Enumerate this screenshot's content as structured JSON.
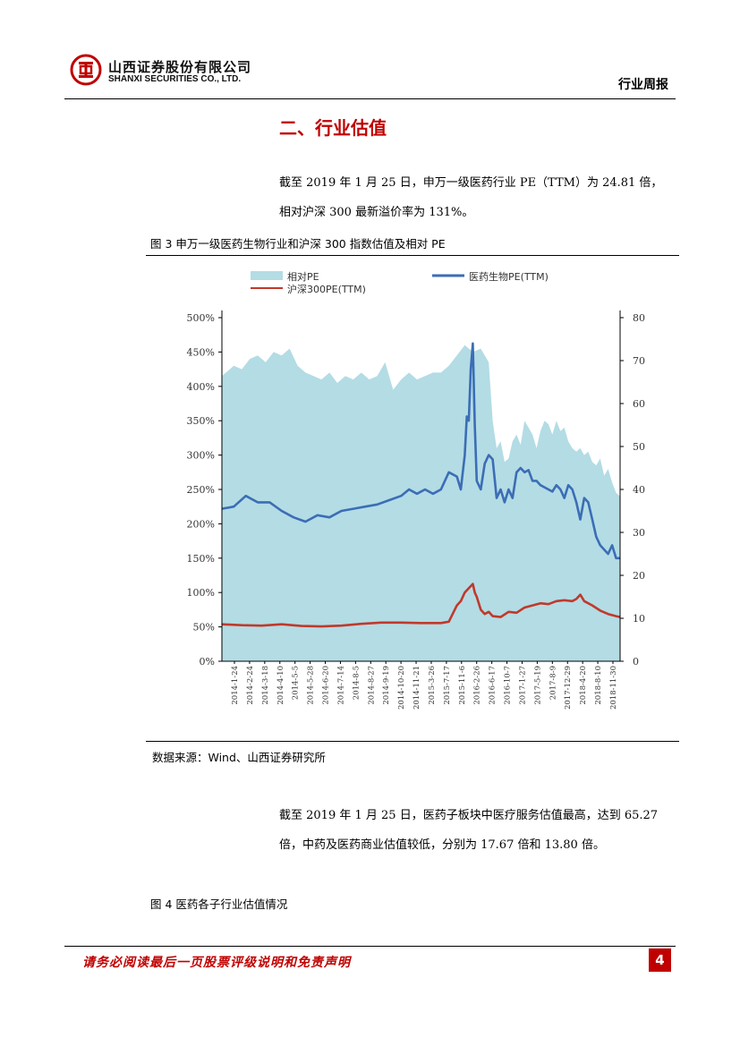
{
  "header": {
    "company_cn": "山西证券股份有限公司",
    "company_en": "SHANXI SECURITIES CO., LTD.",
    "report_type": "行业周报"
  },
  "section": {
    "title": "二、行业估值"
  },
  "paragraphs": {
    "p1": [
      "截至 2019 年 1 月 25 日，申万一级医药行业 PE（TTM）为 24.81 倍，",
      "相对沪深 300 最新溢价率为 131%。"
    ],
    "p2": [
      "截至 2019 年 1 月 25 日，医药子板块中医疗服务估值最高，达到 65.27",
      "倍，中药及医药商业估值较低，分别为 17.67 倍和 13.80 倍。"
    ]
  },
  "figure3": {
    "caption": "图 3 申万一级医药生物行业和沪深 300 指数估值及相对 PE",
    "source": "数据来源：Wind、山西证券研究所"
  },
  "figure4": {
    "caption": "图 4 医药各子行业估值情况"
  },
  "footer": {
    "disclaimer": "请务必阅读最后一页股票评级说明和免责声明",
    "page_number": "4"
  },
  "colors": {
    "accent": "#c00000",
    "area": "#b3dce5",
    "pharma_line": "#3c6db5",
    "hs300_line": "#c0392b"
  },
  "chart_data": {
    "type": "area",
    "legend": [
      "相对PE",
      "医药生物PE(TTM)",
      "沪深300PE(TTM)"
    ],
    "legend_position": "top",
    "x_tick_labels": [
      "2014-1-24",
      "2014-2-24",
      "2014-3-18",
      "2014-4-10",
      "2014-5-5",
      "2014-5-28",
      "2014-6-20",
      "2014-7-14",
      "2014-8-5",
      "2014-8-27",
      "2014-9-19",
      "2014-10-20",
      "2014-11-21",
      "2015-3-26",
      "2015-7-17",
      "2015-11-6",
      "2016-2-26",
      "2016-6-17",
      "2016-10-7",
      "2017-1-27",
      "2017-5-19",
      "2017-8-9",
      "2017-12-29",
      "2018-4-20",
      "2018-8-10",
      "2018-11-30"
    ],
    "y_left": {
      "ticks": [
        "0%",
        "50%",
        "100%",
        "150%",
        "200%",
        "250%",
        "300%",
        "350%",
        "400%",
        "450%",
        "500%"
      ],
      "range": [
        0,
        5
      ]
    },
    "y_right": {
      "ticks": [
        "0",
        "10",
        "20",
        "30",
        "40",
        "50",
        "60",
        "70",
        "80"
      ],
      "range": [
        0,
        80
      ]
    },
    "grid": false,
    "series": [
      {
        "name": "相对PE",
        "axis": "left",
        "kind": "area",
        "points": [
          [
            0,
            4.15
          ],
          [
            0.01,
            4.2
          ],
          [
            0.03,
            4.3
          ],
          [
            0.05,
            4.25
          ],
          [
            0.07,
            4.4
          ],
          [
            0.09,
            4.45
          ],
          [
            0.11,
            4.35
          ],
          [
            0.13,
            4.5
          ],
          [
            0.15,
            4.45
          ],
          [
            0.17,
            4.55
          ],
          [
            0.19,
            4.3
          ],
          [
            0.21,
            4.2
          ],
          [
            0.23,
            4.15
          ],
          [
            0.25,
            4.1
          ],
          [
            0.27,
            4.2
          ],
          [
            0.29,
            4.05
          ],
          [
            0.31,
            4.15
          ],
          [
            0.33,
            4.1
          ],
          [
            0.35,
            4.2
          ],
          [
            0.37,
            4.1
          ],
          [
            0.39,
            4.15
          ],
          [
            0.41,
            4.35
          ],
          [
            0.43,
            3.95
          ],
          [
            0.45,
            4.1
          ],
          [
            0.47,
            4.2
          ],
          [
            0.49,
            4.1
          ],
          [
            0.51,
            4.15
          ],
          [
            0.53,
            4.2
          ],
          [
            0.55,
            4.2
          ],
          [
            0.57,
            4.3
          ],
          [
            0.59,
            4.45
          ],
          [
            0.61,
            4.6
          ],
          [
            0.63,
            4.5
          ],
          [
            0.65,
            4.55
          ],
          [
            0.67,
            4.35
          ],
          [
            0.68,
            3.5
          ],
          [
            0.69,
            3.1
          ],
          [
            0.7,
            3.2
          ],
          [
            0.71,
            2.9
          ],
          [
            0.72,
            2.95
          ],
          [
            0.73,
            3.2
          ],
          [
            0.74,
            3.3
          ],
          [
            0.75,
            3.15
          ],
          [
            0.76,
            3.5
          ],
          [
            0.77,
            3.4
          ],
          [
            0.78,
            3.3
          ],
          [
            0.79,
            3.1
          ],
          [
            0.8,
            3.35
          ],
          [
            0.81,
            3.5
          ],
          [
            0.82,
            3.45
          ],
          [
            0.83,
            3.3
          ],
          [
            0.84,
            3.5
          ],
          [
            0.85,
            3.35
          ],
          [
            0.86,
            3.4
          ],
          [
            0.87,
            3.2
          ],
          [
            0.88,
            3.1
          ],
          [
            0.89,
            3.05
          ],
          [
            0.9,
            3.1
          ],
          [
            0.91,
            3.0
          ],
          [
            0.92,
            3.05
          ],
          [
            0.93,
            2.9
          ],
          [
            0.94,
            2.85
          ],
          [
            0.95,
            2.95
          ],
          [
            0.96,
            2.7
          ],
          [
            0.97,
            2.8
          ],
          [
            0.98,
            2.6
          ],
          [
            0.99,
            2.45
          ],
          [
            1.0,
            2.4
          ]
        ]
      },
      {
        "name": "医药生物PE(TTM)",
        "axis": "right",
        "kind": "line",
        "points": [
          [
            0,
            35.5
          ],
          [
            0.03,
            36
          ],
          [
            0.06,
            38.5
          ],
          [
            0.09,
            37
          ],
          [
            0.12,
            37
          ],
          [
            0.15,
            35
          ],
          [
            0.18,
            33.5
          ],
          [
            0.21,
            32.5
          ],
          [
            0.24,
            34
          ],
          [
            0.27,
            33.5
          ],
          [
            0.3,
            35
          ],
          [
            0.33,
            35.5
          ],
          [
            0.36,
            36
          ],
          [
            0.39,
            36.5
          ],
          [
            0.42,
            37.5
          ],
          [
            0.45,
            38.5
          ],
          [
            0.47,
            40
          ],
          [
            0.49,
            39
          ],
          [
            0.51,
            40
          ],
          [
            0.53,
            39
          ],
          [
            0.55,
            40
          ],
          [
            0.57,
            44
          ],
          [
            0.59,
            43
          ],
          [
            0.6,
            40
          ],
          [
            0.61,
            48
          ],
          [
            0.615,
            57
          ],
          [
            0.62,
            56
          ],
          [
            0.625,
            68
          ],
          [
            0.63,
            74
          ],
          [
            0.635,
            55
          ],
          [
            0.64,
            42
          ],
          [
            0.65,
            40
          ],
          [
            0.66,
            46
          ],
          [
            0.67,
            48
          ],
          [
            0.68,
            47
          ],
          [
            0.69,
            38
          ],
          [
            0.7,
            40
          ],
          [
            0.71,
            37
          ],
          [
            0.72,
            40
          ],
          [
            0.73,
            38
          ],
          [
            0.74,
            44
          ],
          [
            0.75,
            45
          ],
          [
            0.76,
            44
          ],
          [
            0.77,
            44.5
          ],
          [
            0.78,
            42
          ],
          [
            0.79,
            42
          ],
          [
            0.8,
            41
          ],
          [
            0.81,
            40.5
          ],
          [
            0.82,
            40
          ],
          [
            0.83,
            39.5
          ],
          [
            0.84,
            41
          ],
          [
            0.85,
            40
          ],
          [
            0.86,
            38
          ],
          [
            0.87,
            41
          ],
          [
            0.88,
            40
          ],
          [
            0.89,
            37
          ],
          [
            0.9,
            33
          ],
          [
            0.91,
            38
          ],
          [
            0.92,
            37
          ],
          [
            0.93,
            33
          ],
          [
            0.94,
            29
          ],
          [
            0.95,
            27
          ],
          [
            0.96,
            26
          ],
          [
            0.97,
            25
          ],
          [
            0.98,
            27
          ],
          [
            0.99,
            24
          ],
          [
            1.0,
            24
          ]
        ]
      },
      {
        "name": "沪深300PE(TTM)",
        "axis": "right",
        "kind": "line",
        "points": [
          [
            0,
            8.6
          ],
          [
            0.05,
            8.4
          ],
          [
            0.1,
            8.3
          ],
          [
            0.15,
            8.6
          ],
          [
            0.2,
            8.2
          ],
          [
            0.25,
            8.1
          ],
          [
            0.3,
            8.3
          ],
          [
            0.35,
            8.7
          ],
          [
            0.4,
            9.0
          ],
          [
            0.45,
            9.0
          ],
          [
            0.5,
            8.9
          ],
          [
            0.55,
            8.9
          ],
          [
            0.57,
            9.2
          ],
          [
            0.59,
            13
          ],
          [
            0.6,
            14
          ],
          [
            0.61,
            16
          ],
          [
            0.62,
            17
          ],
          [
            0.63,
            18
          ],
          [
            0.635,
            16
          ],
          [
            0.64,
            15
          ],
          [
            0.65,
            12
          ],
          [
            0.66,
            11
          ],
          [
            0.67,
            11.5
          ],
          [
            0.68,
            10.5
          ],
          [
            0.7,
            10.3
          ],
          [
            0.72,
            11.5
          ],
          [
            0.74,
            11.3
          ],
          [
            0.76,
            12.5
          ],
          [
            0.78,
            13
          ],
          [
            0.8,
            13.5
          ],
          [
            0.82,
            13.3
          ],
          [
            0.84,
            14
          ],
          [
            0.86,
            14.2
          ],
          [
            0.88,
            14
          ],
          [
            0.89,
            14.5
          ],
          [
            0.9,
            15.5
          ],
          [
            0.91,
            14
          ],
          [
            0.93,
            13
          ],
          [
            0.95,
            11.8
          ],
          [
            0.97,
            11
          ],
          [
            0.99,
            10.5
          ],
          [
            1.0,
            10.3
          ]
        ]
      }
    ]
  }
}
